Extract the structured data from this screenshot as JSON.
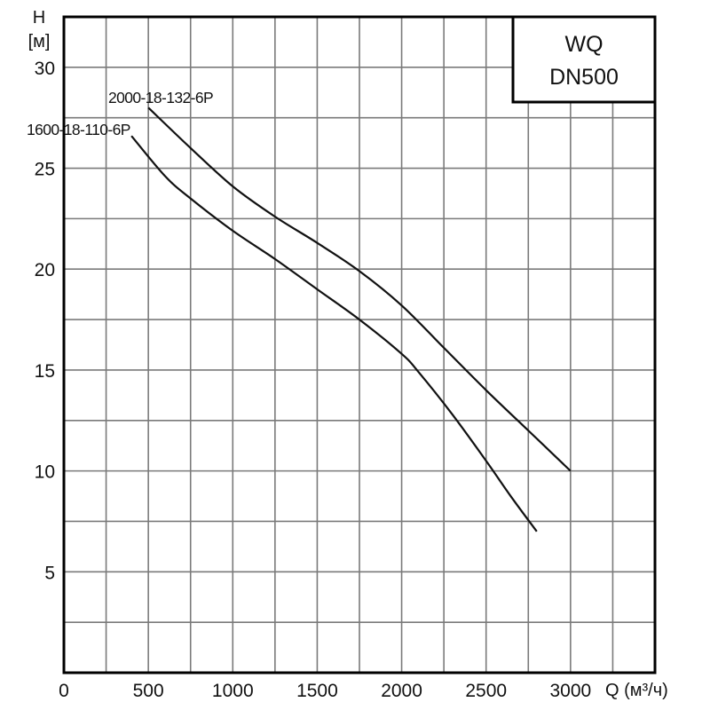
{
  "chart_data": {
    "type": "line",
    "title": "",
    "legend_box": {
      "line1": "WQ",
      "line2": "DN500",
      "placement": "top-right"
    },
    "xlabel": "Q (м³/ч)",
    "ylabel_line1": "H",
    "ylabel_line2": "[м]",
    "xlim": [
      0,
      3500
    ],
    "ylim": [
      0,
      32.5
    ],
    "grid": true,
    "x_ticks": [
      0,
      500,
      1000,
      1500,
      2000,
      2500,
      3000
    ],
    "x_tick_labels": [
      "0",
      "500",
      "1000",
      "1500",
      "2000",
      "2500",
      "3000"
    ],
    "y_ticks": [
      5,
      10,
      15,
      20,
      25,
      30
    ],
    "y_tick_labels": [
      "5",
      "10",
      "15",
      "20",
      "25",
      "30"
    ],
    "series": [
      {
        "name": "2000-18-132-6P",
        "x": [
          500,
          750,
          1000,
          1250,
          1500,
          1750,
          2000,
          2250,
          2500,
          2750,
          3000
        ],
        "y": [
          28.0,
          26.0,
          24.1,
          22.6,
          21.3,
          19.9,
          18.2,
          16.1,
          14.0,
          12.0,
          10.0
        ]
      },
      {
        "name": "1600-18-110-6P",
        "x": [
          400,
          600,
          750,
          1000,
          1250,
          1500,
          1750,
          2000,
          2100,
          2300,
          2500,
          2650,
          2800
        ],
        "y": [
          26.6,
          24.6,
          23.5,
          21.9,
          20.5,
          19.0,
          17.5,
          15.8,
          14.9,
          12.8,
          10.5,
          8.7,
          7.0
        ]
      }
    ],
    "colors": {
      "line": "#111111",
      "grid": "#7a7a7a",
      "frame": "#000000"
    }
  }
}
